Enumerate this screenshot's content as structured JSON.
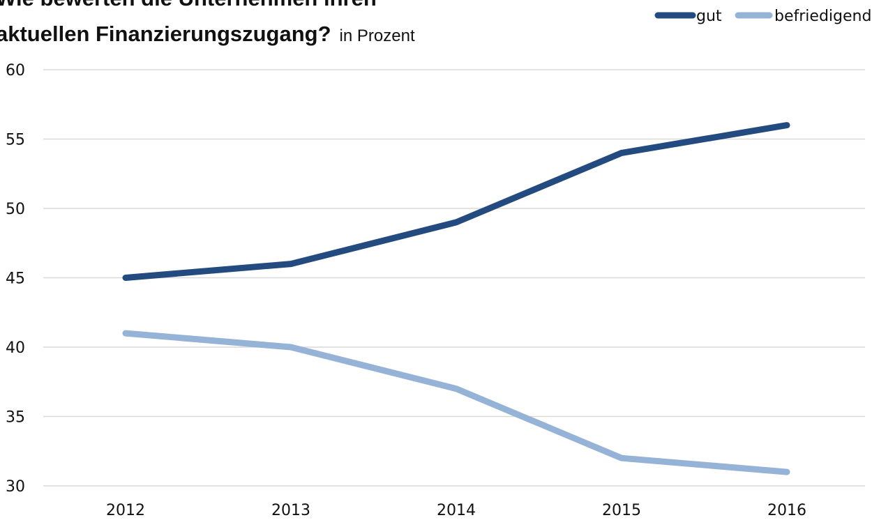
{
  "chart_data": {
    "type": "line",
    "title": [
      "Wie bewerten die Unternehmen ihren",
      "aktuellen Finanzierungszugang?"
    ],
    "subtitle": "in Prozent",
    "categories": [
      "2012",
      "2013",
      "2014",
      "2015",
      "2016"
    ],
    "series": [
      {
        "name": "gut",
        "color": "#234b7f",
        "values": [
          45,
          46,
          49,
          54,
          56
        ]
      },
      {
        "name": "befriedigend",
        "color": "#95b3d7",
        "values": [
          41,
          40,
          37,
          32,
          31
        ]
      }
    ],
    "ylim": [
      30,
      60
    ],
    "yticks": [
      30,
      35,
      40,
      45,
      50,
      55,
      60
    ],
    "grid": true,
    "legend": "top-right"
  }
}
